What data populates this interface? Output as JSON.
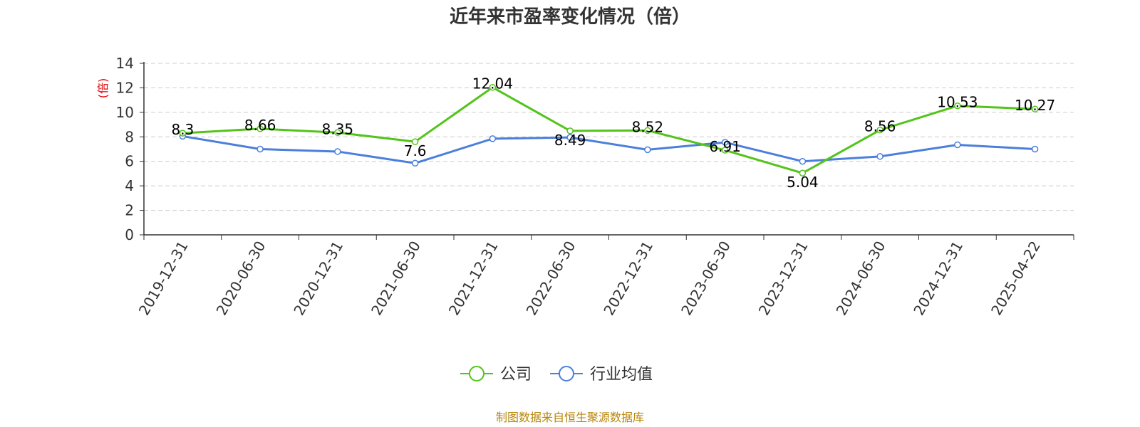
{
  "chart_data": {
    "type": "line",
    "title": "近年来市盈率变化情况（倍）",
    "ylabel": "(倍)",
    "xlabel": "",
    "categories": [
      "2019-12-31",
      "2020-06-30",
      "2020-12-31",
      "2021-06-30",
      "2021-12-31",
      "2022-06-30",
      "2022-12-31",
      "2023-06-30",
      "2023-12-31",
      "2024-06-30",
      "2024-12-31",
      "2025-04-22"
    ],
    "ylim": [
      0,
      14
    ],
    "yticks": [
      0,
      2,
      4,
      6,
      8,
      10,
      12,
      14
    ],
    "grid": true,
    "legend": "bottom-center",
    "series": [
      {
        "name": "公司",
        "color": "#52c41a",
        "values": [
          8.3,
          8.66,
          8.35,
          7.6,
          12.04,
          8.49,
          8.52,
          6.91,
          5.04,
          8.56,
          10.53,
          10.27
        ],
        "labels": [
          "8.3",
          "8.66",
          "8.35",
          "7.6",
          "12.04",
          "8.49",
          "8.52",
          "6.91",
          "5.04",
          "8.56",
          "10.53",
          "10.27"
        ]
      },
      {
        "name": "行业均值",
        "color": "#4a7fdc",
        "values": [
          8.05,
          7.0,
          6.8,
          5.85,
          7.85,
          7.95,
          6.95,
          7.55,
          6.0,
          6.4,
          7.35,
          7.0
        ]
      }
    ],
    "source": "制图数据来自恒生聚源数据库"
  }
}
